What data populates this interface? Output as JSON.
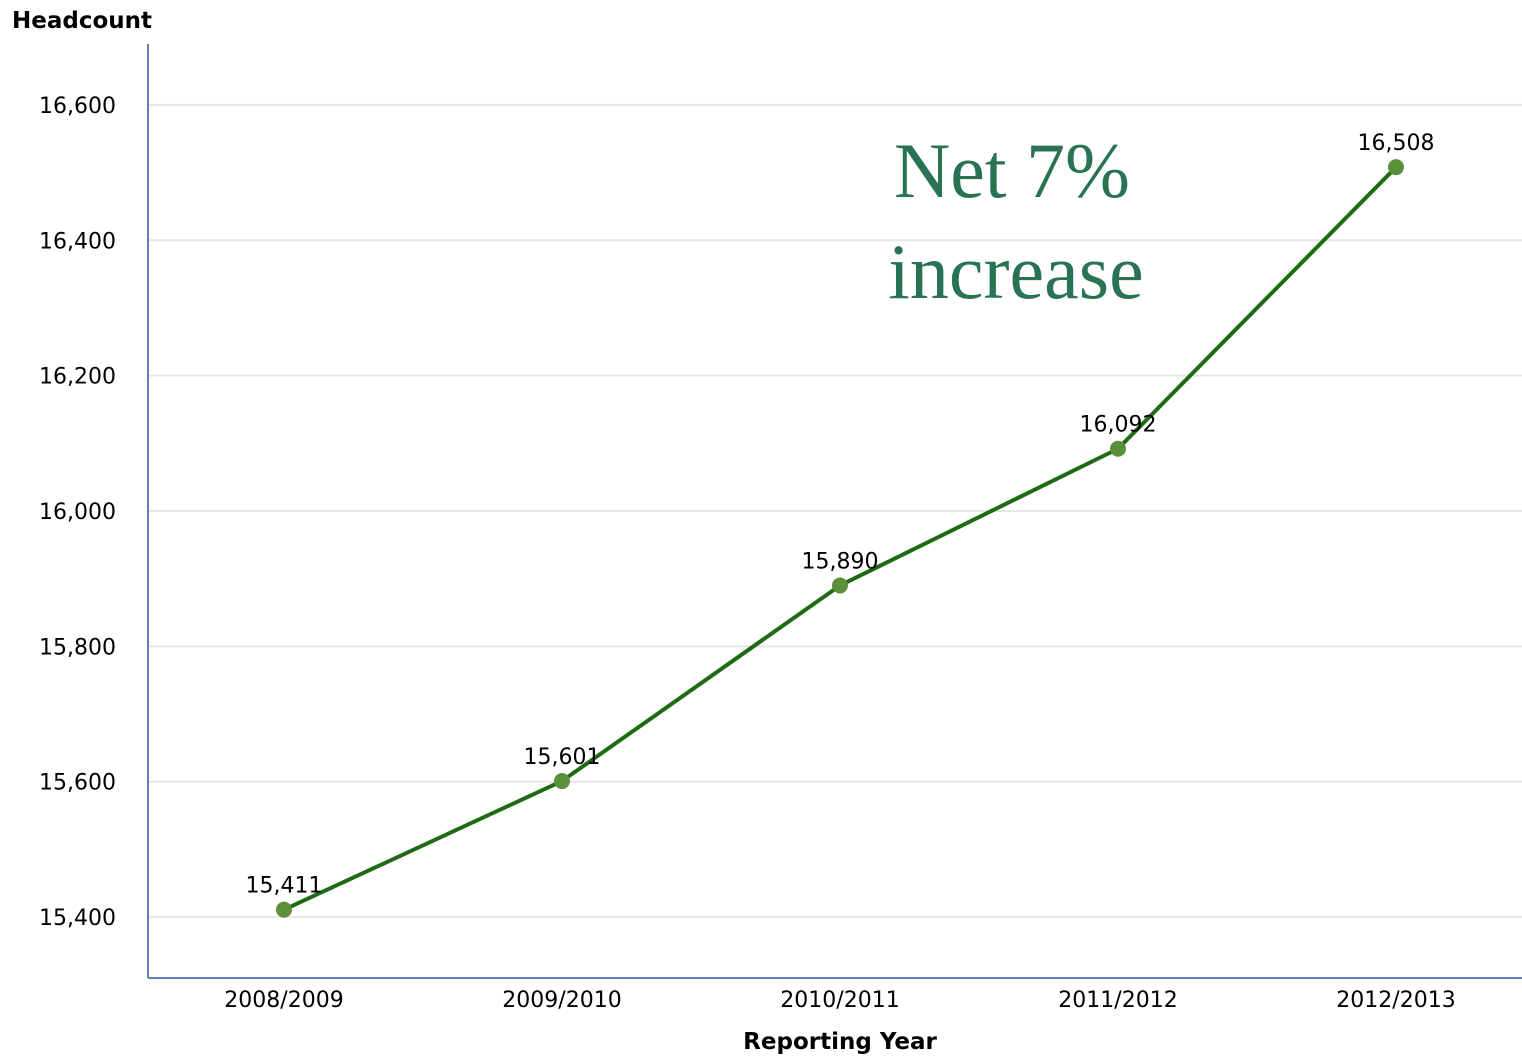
{
  "chart_data": {
    "type": "line",
    "categories": [
      "2008/2009",
      "2009/2010",
      "2010/2011",
      "2011/2012",
      "2012/2013"
    ],
    "values": [
      15411,
      15601,
      15890,
      16092,
      16508
    ],
    "data_labels": [
      "15,411",
      "15,601",
      "15,890",
      "16,092",
      "16,508"
    ],
    "title": "",
    "xlabel": "Reporting Year",
    "ylabel": "Headcount",
    "ylim": [
      15310,
      16690
    ],
    "yticks": [
      15400,
      15600,
      15800,
      16000,
      16200,
      16400,
      16600
    ],
    "ytick_labels": [
      "15,400",
      "15,600",
      "15,800",
      "16,000",
      "16,200",
      "16,400",
      "16,600"
    ],
    "grid": true,
    "legend": "none",
    "annotation": [
      "Net 7%",
      "increase"
    ],
    "colors": {
      "line": "#1e6b14",
      "marker": "#5b8f3a",
      "axis": "#5a82b8",
      "grid": "#e6e6e6",
      "annotation": "#2a7352"
    }
  }
}
